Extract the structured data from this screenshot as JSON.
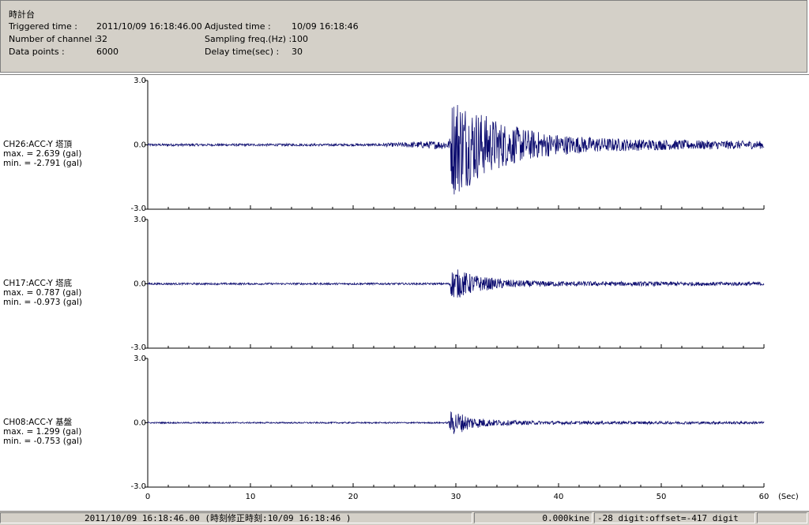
{
  "header": {
    "station": "時計台",
    "triggered_label": "Triggered time :",
    "triggered_value": "2011/10/09 16:18:46.00",
    "adjusted_label": "Adjusted time :",
    "adjusted_value": "10/09 16:18:46",
    "channels_label": "Number of channel :",
    "channels_value": "32",
    "sampling_label": "Sampling freq.(Hz) :",
    "sampling_value": "100",
    "points_label": "Data points :",
    "points_value": "6000",
    "delay_label": "Delay time(sec) :",
    "delay_value": "30"
  },
  "status": {
    "time": "2011/10/09 16:18:46.00  (時刻修正時刻:10/09 16:18:46  )",
    "kine": "0.000kine",
    "digit": "-28 digit:offset=-417 digit"
  },
  "chart_data": {
    "type": "line",
    "xlabel": "(Sec)",
    "xlim": [
      0,
      60
    ],
    "xticks": [
      "0",
      "10",
      "20",
      "30",
      "40",
      "50",
      "60"
    ],
    "ylim": [
      -3.0,
      3.0
    ],
    "yticks": [
      "3.0",
      "0.0",
      "-3.0"
    ],
    "series": [
      {
        "name": "CH26:ACC-Y 塔頂",
        "max_text": "max. = 2.639 (gal)",
        "min_text": "min. = -2.791 (gal)",
        "max": 2.639,
        "min": -2.791,
        "onset": 29.4,
        "noise": 0.05,
        "peak": 2.2,
        "decay": 4.5,
        "coda": 0.25
      },
      {
        "name": "CH17:ACC-Y 塔底",
        "max_text": "max. = 0.787 (gal)",
        "min_text": "min. = -0.973 (gal)",
        "max": 0.787,
        "min": -0.973,
        "onset": 29.4,
        "noise": 0.04,
        "peak": 0.7,
        "decay": 2.5,
        "coda": 0.08
      },
      {
        "name": "CH08:ACC-Y 基盤",
        "max_text": "max. = 1.299 (gal)",
        "min_text": "min. = -0.753 (gal)",
        "max": 1.299,
        "min": -0.753,
        "onset": 29.3,
        "noise": 0.03,
        "peak": 0.6,
        "decay": 2.0,
        "coda": 0.05
      }
    ]
  }
}
